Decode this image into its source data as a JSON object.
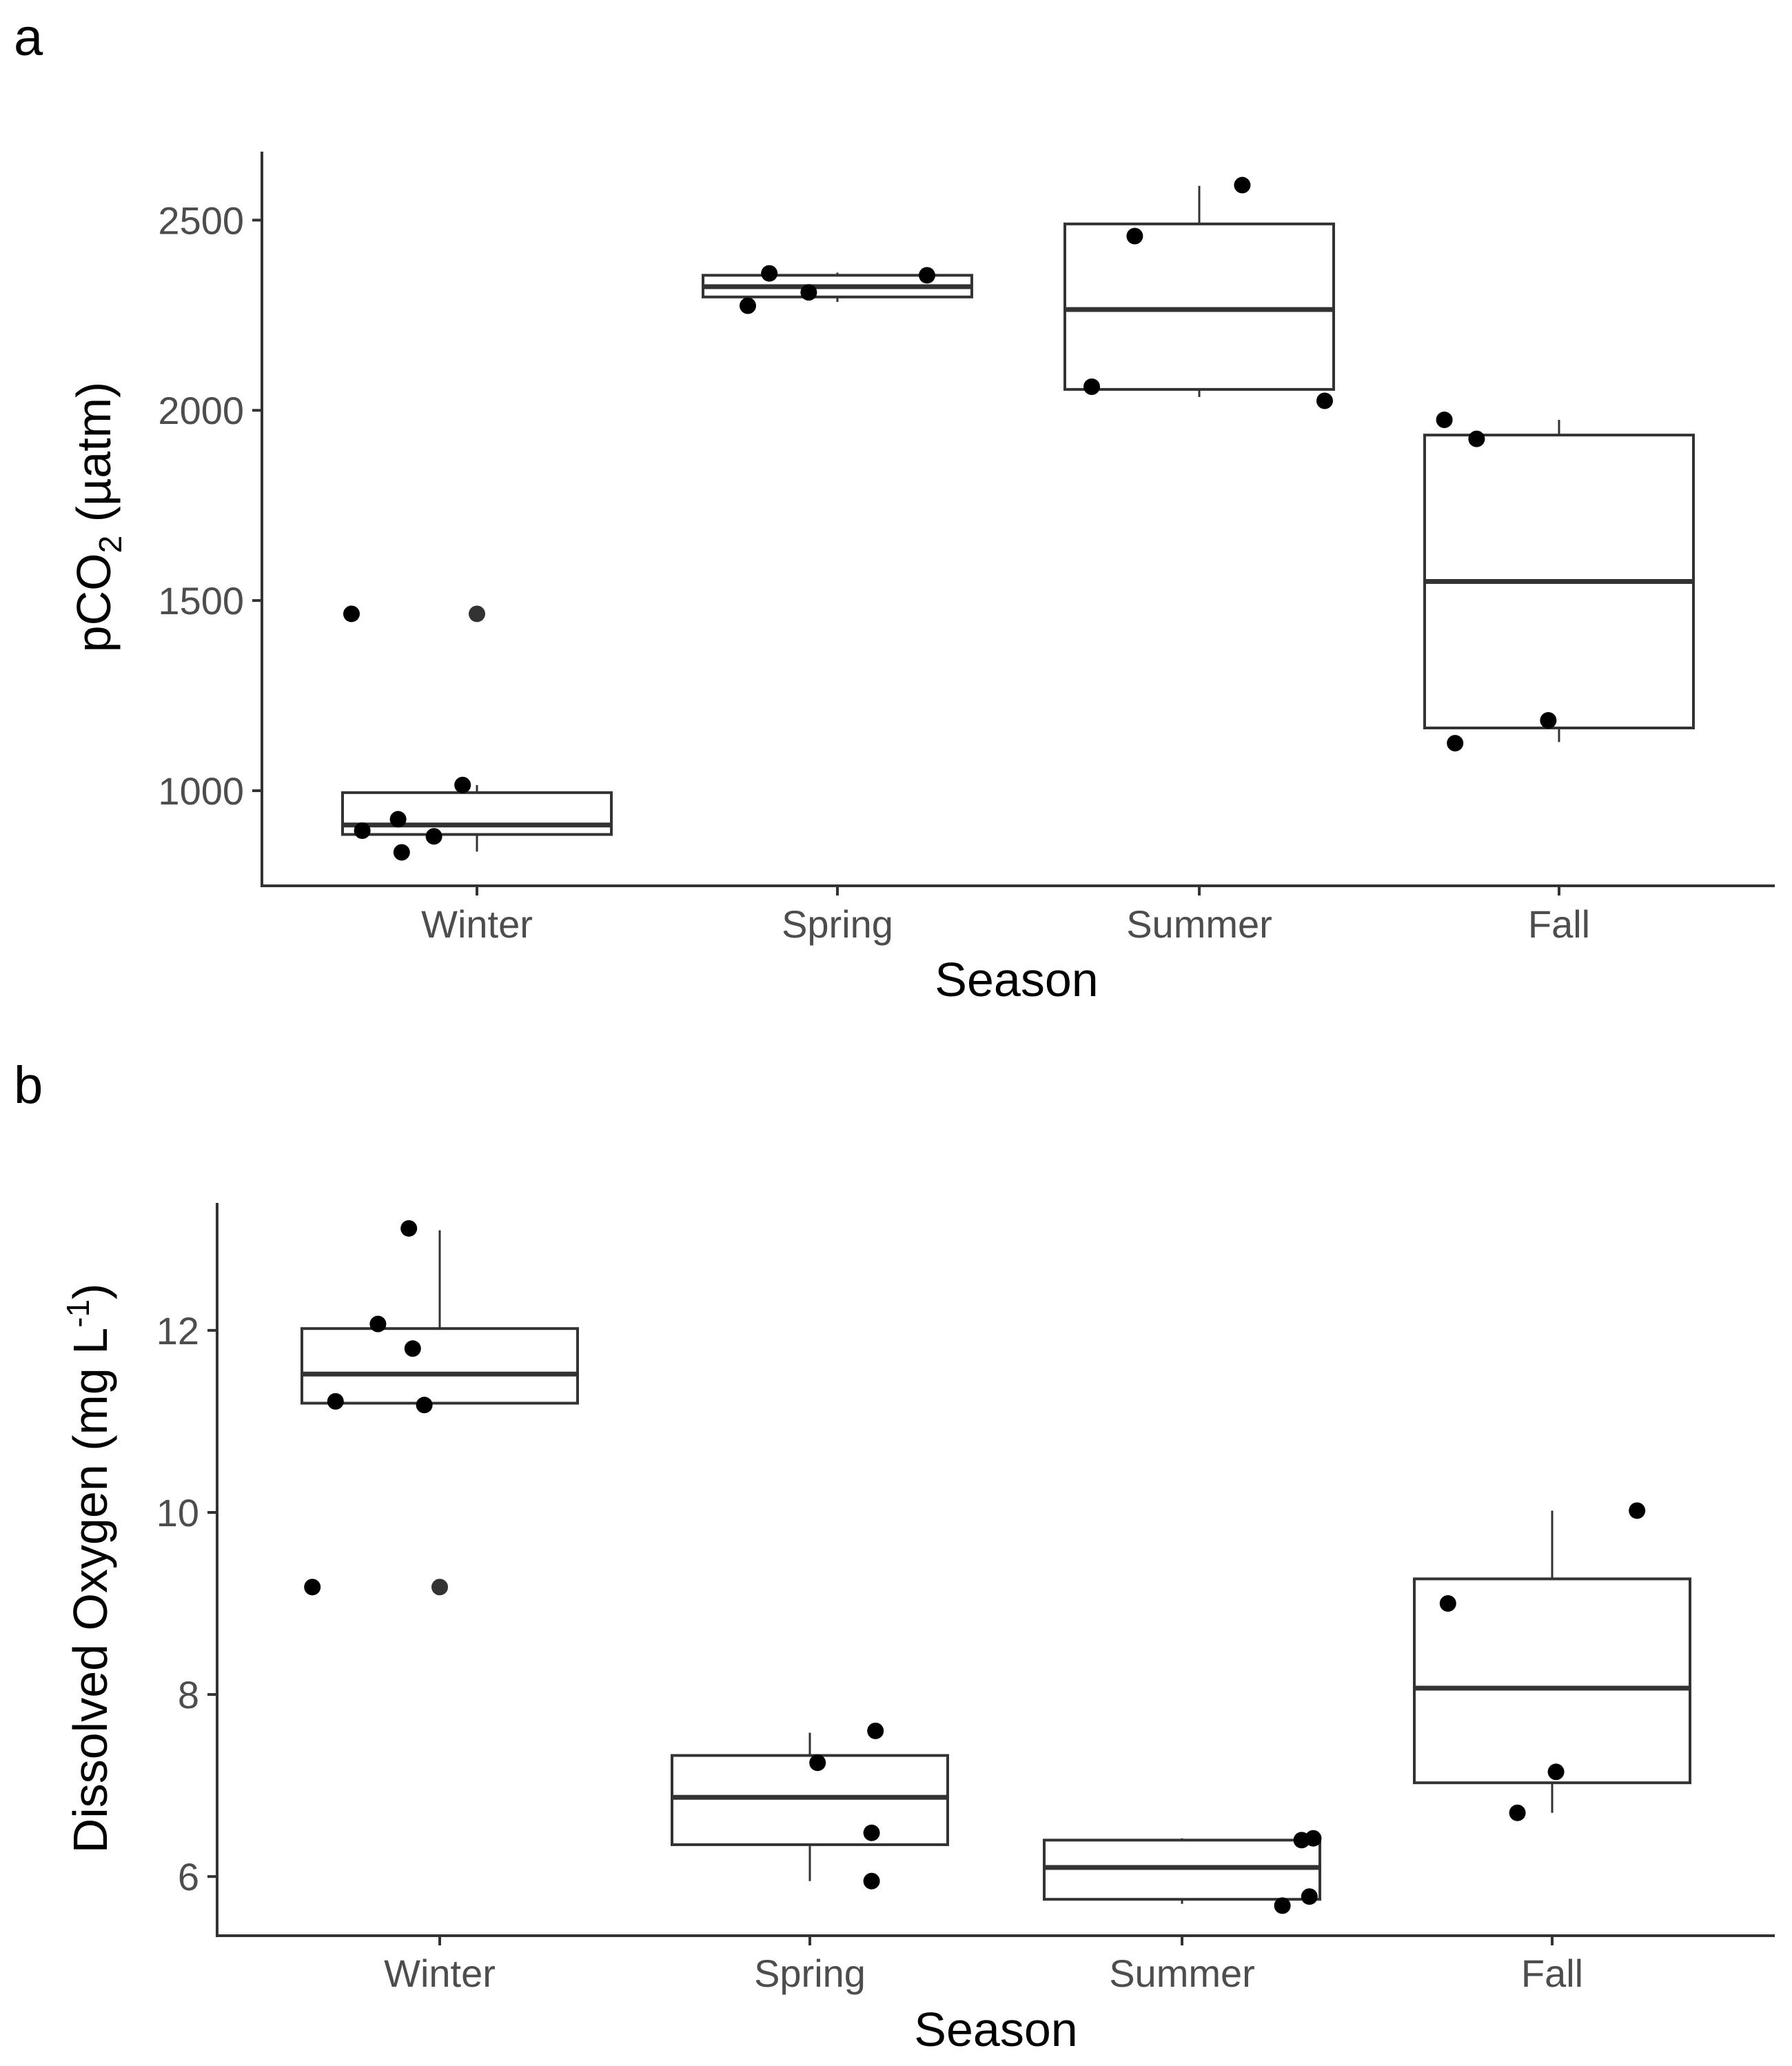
{
  "chart_data": [
    {
      "panel": "a",
      "type": "box",
      "xlabel": "Season",
      "ylabel_main": "pCO",
      "ylabel_sub": "2",
      "ylabel_unit": " (µatm)",
      "categories": [
        "Winter",
        "Spring",
        "Summer",
        "Fall"
      ],
      "yticks": [
        1000,
        1500,
        2000,
        2500
      ],
      "ylim": [
        750,
        2680
      ],
      "boxes": [
        {
          "q1": 885,
          "median": 910,
          "q3": 995,
          "whisker_low": 840,
          "whisker_high": 1015,
          "outliers": [
            1465
          ]
        },
        {
          "q1": 2298,
          "median": 2325,
          "q3": 2355,
          "whisker_low": 2285,
          "whisker_high": 2362,
          "outliers": []
        },
        {
          "q1": 2055,
          "median": 2265,
          "q3": 2490,
          "whisker_low": 2035,
          "whisker_high": 2590,
          "outliers": []
        },
        {
          "q1": 1165,
          "median": 1550,
          "q3": 1935,
          "whisker_low": 1128,
          "whisker_high": 1975,
          "outliers": []
        }
      ],
      "points": [
        {
          "category": 0,
          "jitter": -0.35,
          "y": 1465
        },
        {
          "category": 0,
          "jitter": -0.32,
          "y": 895
        },
        {
          "category": 0,
          "jitter": -0.22,
          "y": 925
        },
        {
          "category": 0,
          "jitter": -0.21,
          "y": 838
        },
        {
          "category": 0,
          "jitter": -0.12,
          "y": 880
        },
        {
          "category": 0,
          "jitter": -0.04,
          "y": 1015
        },
        {
          "category": 1,
          "jitter": -0.25,
          "y": 2275
        },
        {
          "category": 1,
          "jitter": -0.19,
          "y": 2360
        },
        {
          "category": 1,
          "jitter": -0.08,
          "y": 2310
        },
        {
          "category": 1,
          "jitter": 0.25,
          "y": 2355
        },
        {
          "category": 2,
          "jitter": -0.3,
          "y": 2062
        },
        {
          "category": 2,
          "jitter": -0.18,
          "y": 2458
        },
        {
          "category": 2,
          "jitter": 0.12,
          "y": 2592
        },
        {
          "category": 2,
          "jitter": 0.35,
          "y": 2025
        },
        {
          "category": 3,
          "jitter": -0.32,
          "y": 1975
        },
        {
          "category": 3,
          "jitter": -0.29,
          "y": 1125
        },
        {
          "category": 3,
          "jitter": -0.23,
          "y": 1925
        },
        {
          "category": 3,
          "jitter": -0.03,
          "y": 1185
        }
      ]
    },
    {
      "panel": "b",
      "type": "box",
      "xlabel": "Season",
      "ylabel_main": "Dissolved Oxygen (mg L",
      "ylabel_sup": "-1",
      "ylabel_close": ")",
      "categories": [
        "Winter",
        "Spring",
        "Summer",
        "Fall"
      ],
      "yticks": [
        6,
        8,
        10,
        12
      ],
      "ylim": [
        5.35,
        13.4
      ],
      "boxes": [
        {
          "q1": 11.2,
          "median": 11.52,
          "q3": 12.02,
          "whisker_low": 11.2,
          "whisker_high": 13.1,
          "outliers": [
            9.18
          ]
        },
        {
          "q1": 6.35,
          "median": 6.87,
          "q3": 7.33,
          "whisker_low": 5.95,
          "whisker_high": 7.58,
          "outliers": []
        },
        {
          "q1": 5.75,
          "median": 6.1,
          "q3": 6.4,
          "whisker_low": 5.7,
          "whisker_high": 6.42,
          "outliers": []
        },
        {
          "q1": 7.03,
          "median": 8.07,
          "q3": 9.27,
          "whisker_low": 6.7,
          "whisker_high": 10.02,
          "outliers": []
        }
      ],
      "points": [
        {
          "category": 0,
          "jitter": -0.33,
          "y": 9.18
        },
        {
          "category": 0,
          "jitter": -0.27,
          "y": 11.22
        },
        {
          "category": 0,
          "jitter": -0.16,
          "y": 12.07
        },
        {
          "category": 0,
          "jitter": -0.08,
          "y": 13.12
        },
        {
          "category": 0,
          "jitter": -0.07,
          "y": 11.8
        },
        {
          "category": 0,
          "jitter": -0.04,
          "y": 11.18
        },
        {
          "category": 1,
          "jitter": 0.02,
          "y": 7.25
        },
        {
          "category": 1,
          "jitter": 0.16,
          "y": 6.48
        },
        {
          "category": 1,
          "jitter": 0.16,
          "y": 5.95
        },
        {
          "category": 1,
          "jitter": 0.17,
          "y": 7.6
        },
        {
          "category": 2,
          "jitter": 0.26,
          "y": 5.68
        },
        {
          "category": 2,
          "jitter": 0.31,
          "y": 6.4
        },
        {
          "category": 2,
          "jitter": 0.33,
          "y": 5.78
        },
        {
          "category": 2,
          "jitter": 0.34,
          "y": 6.42
        },
        {
          "category": 3,
          "jitter": -0.27,
          "y": 9.0
        },
        {
          "category": 3,
          "jitter": -0.09,
          "y": 6.7
        },
        {
          "category": 3,
          "jitter": 0.01,
          "y": 7.15
        },
        {
          "category": 3,
          "jitter": 0.22,
          "y": 10.02
        }
      ]
    }
  ]
}
